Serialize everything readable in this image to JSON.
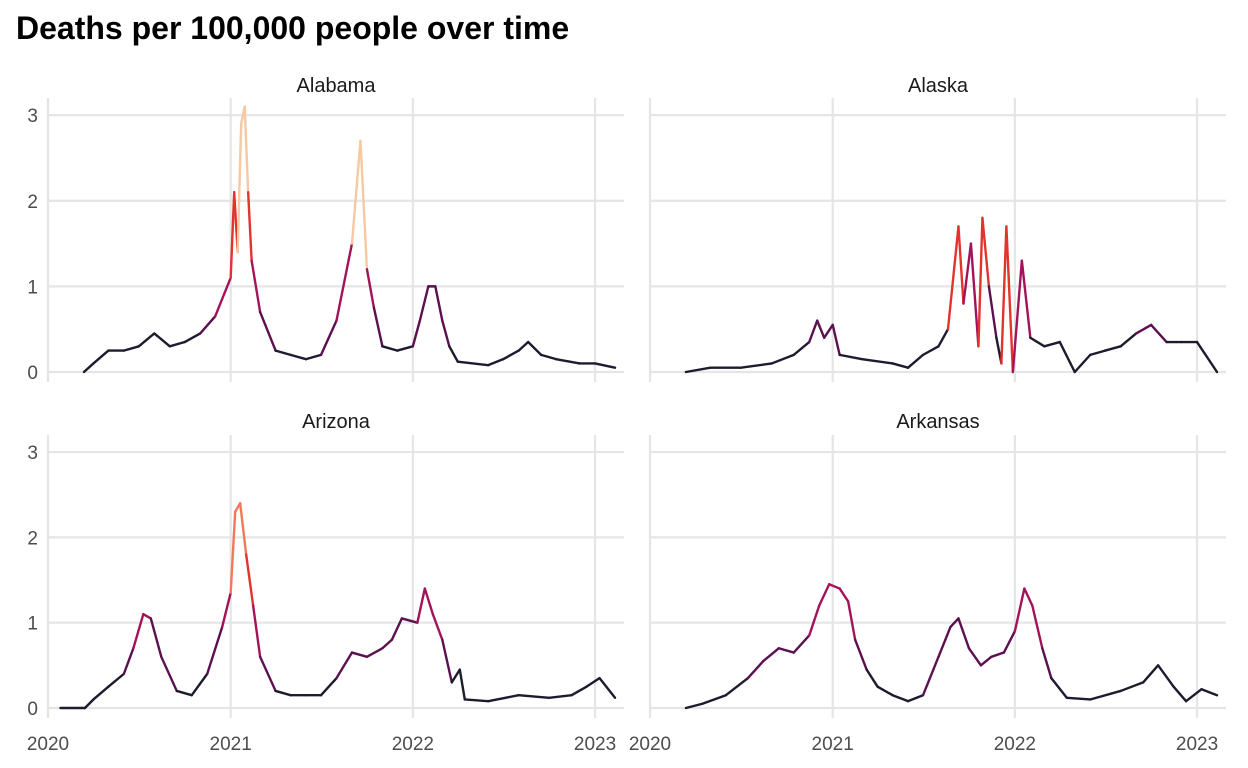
{
  "chart_data": {
    "type": "line",
    "title": "Deaths per 100,000 people over time",
    "xlabel": "",
    "ylabel": "",
    "x_ticks": [
      "2020",
      "2021",
      "2022",
      "2023"
    ],
    "y_ticks": [
      "0",
      "1",
      "2",
      "3"
    ],
    "xlim": [
      "2020-01-01",
      "2023-02-28"
    ],
    "ylim": [
      0,
      3.2
    ],
    "grid": true,
    "legend": "none",
    "color_scale": [
      "#1f1a2e",
      "#5b1050",
      "#a3135a",
      "#e1342e",
      "#f2785a",
      "#f6c9a3"
    ],
    "facets": [
      {
        "name": "Alabama",
        "points": [
          [
            "2020-03-13",
            0
          ],
          [
            "2020-04-01",
            0.1
          ],
          [
            "2020-05-01",
            0.25
          ],
          [
            "2020-06-01",
            0.25
          ],
          [
            "2020-07-01",
            0.3
          ],
          [
            "2020-08-01",
            0.45
          ],
          [
            "2020-09-01",
            0.3
          ],
          [
            "2020-10-01",
            0.35
          ],
          [
            "2020-11-01",
            0.45
          ],
          [
            "2020-12-01",
            0.65
          ],
          [
            "2021-01-01",
            1.1
          ],
          [
            "2021-01-08",
            2.1
          ],
          [
            "2021-01-15",
            1.4
          ],
          [
            "2021-01-22",
            2.9
          ],
          [
            "2021-01-29",
            3.1
          ],
          [
            "2021-02-05",
            2.1
          ],
          [
            "2021-02-12",
            1.3
          ],
          [
            "2021-03-01",
            0.7
          ],
          [
            "2021-04-01",
            0.25
          ],
          [
            "2021-05-01",
            0.2
          ],
          [
            "2021-06-01",
            0.15
          ],
          [
            "2021-07-01",
            0.2
          ],
          [
            "2021-08-01",
            0.6
          ],
          [
            "2021-09-01",
            1.5
          ],
          [
            "2021-09-18",
            2.7
          ],
          [
            "2021-10-01",
            1.2
          ],
          [
            "2021-10-15",
            0.75
          ],
          [
            "2021-11-01",
            0.3
          ],
          [
            "2021-12-01",
            0.25
          ],
          [
            "2022-01-01",
            0.3
          ],
          [
            "2022-01-15",
            0.6
          ],
          [
            "2022-02-01",
            1.0
          ],
          [
            "2022-02-15",
            1.0
          ],
          [
            "2022-03-01",
            0.6
          ],
          [
            "2022-03-15",
            0.3
          ],
          [
            "2022-04-01",
            0.12
          ],
          [
            "2022-06-01",
            0.08
          ],
          [
            "2022-07-01",
            0.15
          ],
          [
            "2022-08-01",
            0.25
          ],
          [
            "2022-08-20",
            0.35
          ],
          [
            "2022-09-15",
            0.2
          ],
          [
            "2022-10-15",
            0.15
          ],
          [
            "2022-12-01",
            0.1
          ],
          [
            "2023-01-01",
            0.1
          ],
          [
            "2023-02-10",
            0.05
          ]
        ]
      },
      {
        "name": "Alaska",
        "points": [
          [
            "2020-03-13",
            0
          ],
          [
            "2020-05-01",
            0.05
          ],
          [
            "2020-07-01",
            0.05
          ],
          [
            "2020-09-01",
            0.1
          ],
          [
            "2020-10-15",
            0.2
          ],
          [
            "2020-11-15",
            0.35
          ],
          [
            "2020-12-01",
            0.6
          ],
          [
            "2020-12-15",
            0.4
          ],
          [
            "2021-01-01",
            0.55
          ],
          [
            "2021-01-15",
            0.2
          ],
          [
            "2021-03-01",
            0.15
          ],
          [
            "2021-05-01",
            0.1
          ],
          [
            "2021-06-01",
            0.05
          ],
          [
            "2021-07-01",
            0.2
          ],
          [
            "2021-08-01",
            0.3
          ],
          [
            "2021-08-20",
            0.5
          ],
          [
            "2021-09-10",
            1.7
          ],
          [
            "2021-09-20",
            0.8
          ],
          [
            "2021-10-05",
            1.5
          ],
          [
            "2021-10-20",
            0.3
          ],
          [
            "2021-10-28",
            1.8
          ],
          [
            "2021-11-10",
            1.0
          ],
          [
            "2021-11-25",
            0.4
          ],
          [
            "2021-12-05",
            0.1
          ],
          [
            "2021-12-15",
            1.7
          ],
          [
            "2021-12-28",
            0
          ],
          [
            "2022-01-15",
            1.3
          ],
          [
            "2022-02-01",
            0.4
          ],
          [
            "2022-03-01",
            0.3
          ],
          [
            "2022-04-01",
            0.35
          ],
          [
            "2022-05-01",
            0
          ],
          [
            "2022-06-01",
            0.2
          ],
          [
            "2022-07-01",
            0.25
          ],
          [
            "2022-08-01",
            0.3
          ],
          [
            "2022-09-01",
            0.45
          ],
          [
            "2022-10-01",
            0.55
          ],
          [
            "2022-11-01",
            0.35
          ],
          [
            "2022-12-01",
            0.35
          ],
          [
            "2023-01-01",
            0.35
          ],
          [
            "2023-02-10",
            0
          ]
        ]
      },
      {
        "name": "Arizona",
        "points": [
          [
            "2020-01-26",
            0
          ],
          [
            "2020-03-15",
            0
          ],
          [
            "2020-04-01",
            0.1
          ],
          [
            "2020-05-01",
            0.25
          ],
          [
            "2020-06-01",
            0.4
          ],
          [
            "2020-06-20",
            0.7
          ],
          [
            "2020-07-10",
            1.1
          ],
          [
            "2020-07-25",
            1.05
          ],
          [
            "2020-08-15",
            0.6
          ],
          [
            "2020-09-15",
            0.2
          ],
          [
            "2020-10-15",
            0.15
          ],
          [
            "2020-11-15",
            0.4
          ],
          [
            "2020-12-15",
            0.95
          ],
          [
            "2021-01-01",
            1.35
          ],
          [
            "2021-01-10",
            2.3
          ],
          [
            "2021-01-20",
            2.4
          ],
          [
            "2021-02-01",
            1.8
          ],
          [
            "2021-02-15",
            1.2
          ],
          [
            "2021-03-01",
            0.6
          ],
          [
            "2021-04-01",
            0.2
          ],
          [
            "2021-05-01",
            0.15
          ],
          [
            "2021-06-01",
            0.15
          ],
          [
            "2021-07-01",
            0.15
          ],
          [
            "2021-08-01",
            0.35
          ],
          [
            "2021-09-01",
            0.65
          ],
          [
            "2021-10-01",
            0.6
          ],
          [
            "2021-11-01",
            0.7
          ],
          [
            "2021-11-20",
            0.8
          ],
          [
            "2021-12-10",
            1.05
          ],
          [
            "2022-01-10",
            1.0
          ],
          [
            "2022-01-25",
            1.4
          ],
          [
            "2022-02-10",
            1.1
          ],
          [
            "2022-03-01",
            0.8
          ],
          [
            "2022-03-20",
            0.3
          ],
          [
            "2022-04-05",
            0.45
          ],
          [
            "2022-04-15",
            0.1
          ],
          [
            "2022-06-01",
            0.08
          ],
          [
            "2022-08-01",
            0.15
          ],
          [
            "2022-10-01",
            0.12
          ],
          [
            "2022-11-15",
            0.15
          ],
          [
            "2022-12-15",
            0.25
          ],
          [
            "2023-01-10",
            0.35
          ],
          [
            "2023-02-10",
            0.12
          ]
        ]
      },
      {
        "name": "Arkansas",
        "points": [
          [
            "2020-03-13",
            0
          ],
          [
            "2020-04-15",
            0.05
          ],
          [
            "2020-06-01",
            0.15
          ],
          [
            "2020-07-15",
            0.35
          ],
          [
            "2020-08-15",
            0.55
          ],
          [
            "2020-09-15",
            0.7
          ],
          [
            "2020-10-15",
            0.65
          ],
          [
            "2020-11-15",
            0.85
          ],
          [
            "2020-12-05",
            1.2
          ],
          [
            "2020-12-25",
            1.45
          ],
          [
            "2021-01-15",
            1.4
          ],
          [
            "2021-02-01",
            1.25
          ],
          [
            "2021-02-15",
            0.8
          ],
          [
            "2021-03-10",
            0.45
          ],
          [
            "2021-04-01",
            0.25
          ],
          [
            "2021-05-01",
            0.15
          ],
          [
            "2021-06-01",
            0.08
          ],
          [
            "2021-07-01",
            0.15
          ],
          [
            "2021-08-01",
            0.6
          ],
          [
            "2021-08-25",
            0.95
          ],
          [
            "2021-09-10",
            1.05
          ],
          [
            "2021-10-01",
            0.7
          ],
          [
            "2021-10-25",
            0.5
          ],
          [
            "2021-11-15",
            0.6
          ],
          [
            "2021-12-10",
            0.65
          ],
          [
            "2022-01-01",
            0.9
          ],
          [
            "2022-01-20",
            1.4
          ],
          [
            "2022-02-05",
            1.2
          ],
          [
            "2022-02-25",
            0.7
          ],
          [
            "2022-03-15",
            0.35
          ],
          [
            "2022-04-15",
            0.12
          ],
          [
            "2022-06-01",
            0.1
          ],
          [
            "2022-08-01",
            0.2
          ],
          [
            "2022-09-15",
            0.3
          ],
          [
            "2022-10-15",
            0.5
          ],
          [
            "2022-11-15",
            0.25
          ],
          [
            "2022-12-10",
            0.08
          ],
          [
            "2023-01-10",
            0.22
          ],
          [
            "2023-02-10",
            0.15
          ]
        ]
      }
    ]
  }
}
